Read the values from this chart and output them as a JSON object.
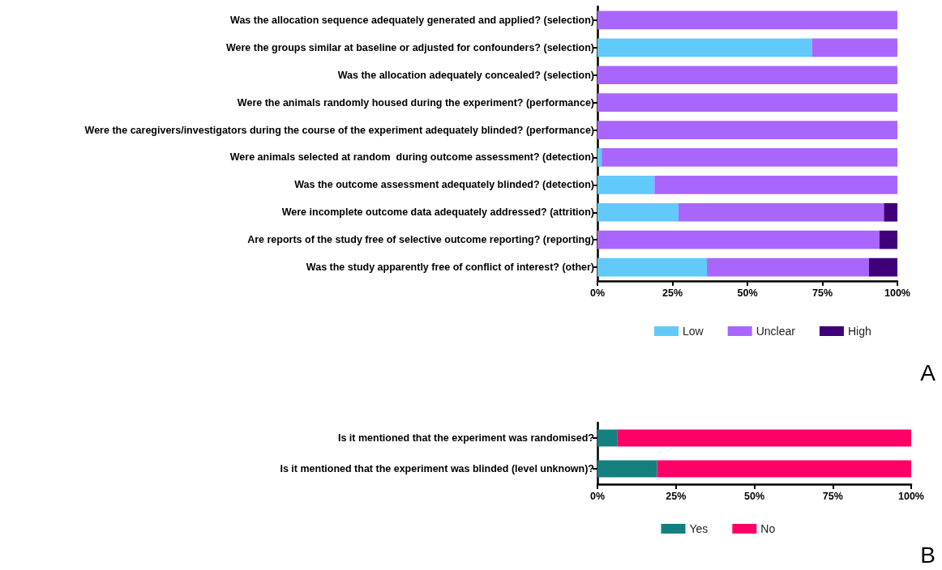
{
  "chart_data": [
    {
      "type": "bar",
      "orientation": "horizontal",
      "stacked": true,
      "categories": [
        "Was the allocation sequence adequately generated and applied? (selection)",
        "Were the groups similar at baseline or adjusted for confounders? (selection)",
        "Was the allocation adequately concealed? (selection)",
        "Were the animals randomly housed during the experiment? (performance)",
        "Were the caregivers/investigators during the course of the experiment adequately blinded? (performance)",
        "Were animals selected at random  during outcome assessment? (detection)",
        "Was the outcome assessment adequately blinded? (detection)",
        "Were incomplete outcome data adequately addressed? (attrition)",
        "Are reports of the study free of selective outcome reporting? (reporting)",
        "Was the study apparently free of conflict of interest? (other)"
      ],
      "series": [
        {
          "name": "Low",
          "color": "#62c9fb",
          "values": [
            0,
            71.5,
            0,
            0,
            0,
            1.4,
            19,
            27,
            0,
            36.5
          ]
        },
        {
          "name": "Unclear",
          "color": "#a966fd",
          "values": [
            100,
            28.5,
            100,
            100,
            100,
            98.6,
            81,
            68.5,
            94,
            54
          ]
        },
        {
          "name": "High",
          "color": "#3f0079",
          "values": [
            0,
            0,
            0,
            0,
            0,
            0,
            0,
            4.5,
            6,
            9.5
          ]
        }
      ],
      "xlim": [
        0,
        100
      ],
      "xticks": [
        {
          "value": 0,
          "label": "0%"
        },
        {
          "value": 25,
          "label": "25%"
        },
        {
          "value": 50,
          "label": "50%"
        },
        {
          "value": 75,
          "label": "75%"
        },
        {
          "value": 100,
          "label": "100%"
        }
      ],
      "legend": "bottom",
      "annotations": [
        "A"
      ]
    },
    {
      "type": "bar",
      "orientation": "horizontal",
      "stacked": true,
      "categories": [
        "Is it mentioned that the experiment was randomised?",
        "Is it mentioned that the experiment was blinded (level unknown)?"
      ],
      "series": [
        {
          "name": "Yes",
          "color": "#137f7f",
          "values": [
            6.4,
            19
          ]
        },
        {
          "name": "No",
          "color": "#ff0066",
          "values": [
            93.6,
            81
          ]
        }
      ],
      "xlim": [
        0,
        100
      ],
      "xticks": [
        {
          "value": 0,
          "label": "0%"
        },
        {
          "value": 25,
          "label": "25%"
        },
        {
          "value": 50,
          "label": "50%"
        },
        {
          "value": 75,
          "label": "75%"
        },
        {
          "value": 100,
          "label": "100%"
        }
      ],
      "legend": "bottom",
      "annotations": [
        "B"
      ]
    }
  ]
}
